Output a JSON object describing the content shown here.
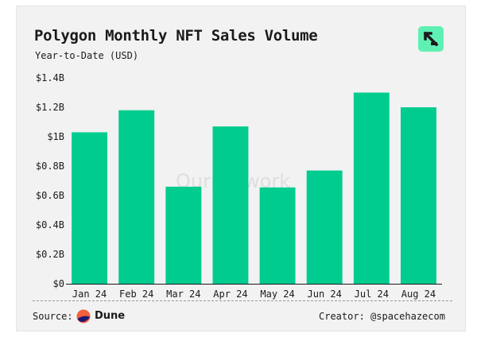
{
  "header": {
    "title": "Polygon Monthly NFT Sales Volume",
    "subtitle": "Year-to-Date (USD)"
  },
  "watermark": "OurNetwork",
  "footer": {
    "source_label": "Source:",
    "source_name": "Dune",
    "creator": "Creator: @spacehazecom"
  },
  "colors": {
    "bar": "#00cc8f",
    "background": "#f2f2f2",
    "logo": "#5ff0b4",
    "text": "#1a1a1a"
  },
  "chart_data": {
    "type": "bar",
    "title": "Polygon Monthly NFT Sales Volume",
    "subtitle": "Year-to-Date (USD)",
    "categories": [
      "Jan 24",
      "Feb 24",
      "Mar 24",
      "Apr 24",
      "May 24",
      "Jun 24",
      "Jul 24",
      "Aug 24"
    ],
    "values": [
      1.03,
      1.18,
      0.66,
      1.07,
      0.655,
      0.77,
      1.3,
      1.2
    ],
    "unit": "USD billions",
    "ylim": [
      0,
      1.4
    ],
    "yticks": [
      0,
      0.2,
      0.4,
      0.6,
      0.8,
      1.0,
      1.2,
      1.4
    ],
    "ytick_labels": [
      "$0",
      "$0.2B",
      "$0.4B",
      "$0.6B",
      "$0.8B",
      "$1B",
      "$1.2B",
      "$1.4B"
    ],
    "grid": false,
    "legend": "none"
  }
}
